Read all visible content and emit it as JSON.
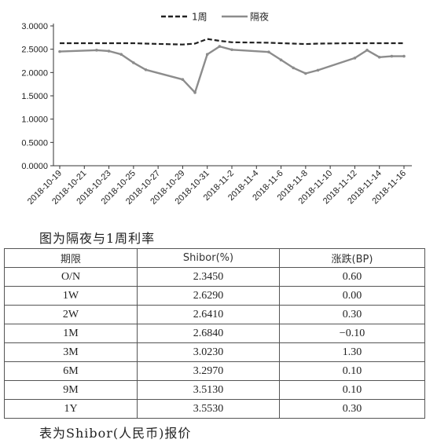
{
  "chart_data": {
    "type": "line",
    "x": [
      "2018-10-19",
      "2018-10-22",
      "2018-10-23",
      "2018-10-24",
      "2018-10-25",
      "2018-10-26",
      "2018-10-29",
      "2018-10-30",
      "2018-10-31",
      "2018-11-1",
      "2018-11-2",
      "2018-11-5",
      "2018-11-6",
      "2018-11-7",
      "2018-11-8",
      "2018-11-9",
      "2018-11-12",
      "2018-11-13",
      "2018-11-14",
      "2018-11-15",
      "2018-11-16"
    ],
    "x_tick_labels": [
      "2018-10-19",
      "2018-10-21",
      "2018-10-23",
      "2018-10-25",
      "2018-10-27",
      "2018-10-29",
      "2018-10-31",
      "2018-11-2",
      "2018-11-4",
      "2018-11-6",
      "2018-11-8",
      "2018-11-10",
      "2018-11-12",
      "2018-11-14",
      "2018-11-16"
    ],
    "series": [
      {
        "name": "1周",
        "style": "dashed",
        "color": "#222222",
        "values": [
          2.63,
          2.63,
          2.63,
          2.63,
          2.63,
          2.62,
          2.6,
          2.62,
          2.72,
          2.68,
          2.65,
          2.64,
          2.63,
          2.62,
          2.61,
          2.62,
          2.63,
          2.63,
          2.63,
          2.63,
          2.63
        ]
      },
      {
        "name": "隔夜",
        "style": "solid",
        "color": "#8c8c8c",
        "values": [
          2.45,
          2.48,
          2.46,
          2.39,
          2.21,
          2.06,
          1.85,
          1.57,
          2.39,
          2.56,
          2.49,
          2.44,
          2.27,
          2.1,
          1.98,
          2.05,
          2.31,
          2.48,
          2.33,
          2.35,
          2.35
        ]
      }
    ],
    "y_ticks": [
      "0.0000",
      "0.5000",
      "1.0000",
      "1.5000",
      "2.0000",
      "2.5000",
      "3.0000"
    ],
    "ylim": [
      0,
      3
    ],
    "legend": "top-center",
    "grid": false
  },
  "captions": {
    "chart": "图为隔夜与1周利率",
    "table": "表为Shibor(人民币)报价"
  },
  "table": {
    "headers": [
      "期限",
      "Shibor(%)",
      "涨跌(BP)"
    ],
    "rows": [
      [
        "O/N",
        "2.3450",
        "0.60"
      ],
      [
        "1W",
        "2.6290",
        "0.00"
      ],
      [
        "2W",
        "2.6410",
        "0.30"
      ],
      [
        "1M",
        "2.6840",
        "−0.10"
      ],
      [
        "3M",
        "3.0230",
        "1.30"
      ],
      [
        "6M",
        "3.2970",
        "0.10"
      ],
      [
        "9M",
        "3.5130",
        "0.10"
      ],
      [
        "1Y",
        "3.5530",
        "0.30"
      ]
    ]
  }
}
